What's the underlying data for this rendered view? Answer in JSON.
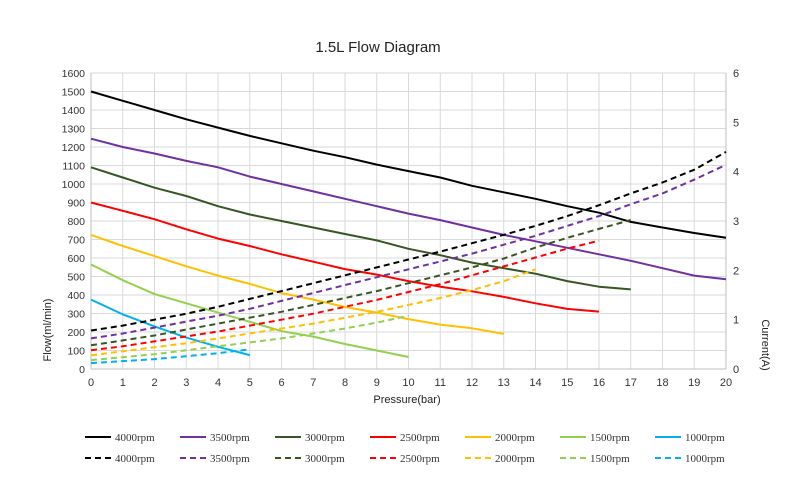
{
  "chart_data": {
    "type": "line",
    "title": "1.5L Flow Diagram",
    "xlabel": "Pressure(bar)",
    "ylabel_left": "Flow(ml/min)",
    "ylabel_right": "Current(A)",
    "xlim": [
      0,
      20
    ],
    "ylim_left": [
      0,
      1600
    ],
    "ylim_right": [
      0,
      6
    ],
    "x_ticks": [
      0,
      1,
      2,
      3,
      4,
      5,
      6,
      7,
      8,
      9,
      10,
      11,
      12,
      13,
      14,
      15,
      16,
      17,
      18,
      19,
      20
    ],
    "y_left_ticks": [
      0,
      100,
      200,
      300,
      400,
      500,
      600,
      700,
      800,
      900,
      1000,
      1100,
      1200,
      1300,
      1400,
      1500,
      1600
    ],
    "y_left_tick_labels": [
      "0",
      "100",
      "200",
      "300",
      "400",
      "500",
      "600",
      "700",
      "800",
      "900",
      "1000",
      "1100",
      "1200",
      "1300",
      "1400",
      "1500",
      "1600"
    ],
    "y_right_ticks": [
      0,
      1,
      2,
      3,
      4,
      5,
      6
    ],
    "grid": true,
    "legend_position": "bottom",
    "flow_series": [
      {
        "name": "4000rpm",
        "color": "#000000",
        "x": [
          0,
          1,
          2,
          3,
          4,
          5,
          6,
          7,
          8,
          9,
          10,
          11,
          12,
          13,
          14,
          15,
          16,
          17,
          18,
          19,
          20
        ],
        "y": [
          1500,
          1450,
          1400,
          1350,
          1305,
          1260,
          1220,
          1180,
          1145,
          1105,
          1070,
          1035,
          990,
          955,
          920,
          880,
          845,
          795,
          765,
          735,
          710
        ]
      },
      {
        "name": "3500rpm",
        "color": "#7030a0",
        "x": [
          0,
          1,
          2,
          3,
          4,
          5,
          6,
          7,
          8,
          9,
          10,
          11,
          12,
          13,
          14,
          15,
          16,
          17,
          18,
          19,
          20
        ],
        "y": [
          1245,
          1200,
          1165,
          1125,
          1090,
          1040,
          1000,
          960,
          920,
          880,
          840,
          805,
          765,
          725,
          690,
          655,
          620,
          585,
          545,
          505,
          485
        ]
      },
      {
        "name": "3000rpm",
        "color": "#375623",
        "x": [
          0,
          1,
          2,
          3,
          4,
          5,
          6,
          7,
          8,
          9,
          10,
          11,
          12,
          13,
          14,
          15,
          16,
          17
        ],
        "y": [
          1090,
          1035,
          980,
          935,
          880,
          835,
          800,
          765,
          730,
          695,
          650,
          615,
          575,
          545,
          515,
          475,
          445,
          430
        ]
      },
      {
        "name": "2500rpm",
        "color": "#ff0000",
        "x": [
          0,
          1,
          2,
          3,
          4,
          5,
          6,
          7,
          8,
          9,
          10,
          11,
          12,
          13,
          14,
          15,
          16
        ],
        "y": [
          900,
          855,
          810,
          755,
          705,
          665,
          620,
          580,
          540,
          510,
          475,
          445,
          420,
          390,
          355,
          325,
          310
        ]
      },
      {
        "name": "2000rpm",
        "color": "#ffc000",
        "x": [
          0,
          1,
          2,
          3,
          4,
          5,
          6,
          7,
          8,
          9,
          10,
          11,
          12,
          13
        ],
        "y": [
          725,
          665,
          610,
          555,
          505,
          460,
          410,
          375,
          335,
          305,
          270,
          240,
          220,
          190
        ]
      },
      {
        "name": "1500rpm",
        "color": "#92d050",
        "x": [
          0,
          1,
          2,
          3,
          4,
          5,
          6,
          7,
          8,
          9,
          10
        ],
        "y": [
          565,
          480,
          405,
          355,
          305,
          255,
          205,
          175,
          135,
          100,
          65
        ]
      },
      {
        "name": "1000rpm",
        "color": "#00b0f0",
        "x": [
          0,
          1,
          2,
          3,
          4,
          5
        ],
        "y": [
          375,
          295,
          230,
          170,
          120,
          75
        ]
      }
    ],
    "current_series": [
      {
        "name": "4000rpm",
        "color": "#000000",
        "x": [
          0,
          1,
          2,
          3,
          4,
          5,
          6,
          7,
          8,
          9,
          10,
          11,
          12,
          13,
          14,
          15,
          16,
          17,
          18,
          19,
          20
        ],
        "y": [
          0.78,
          0.88,
          1.0,
          1.12,
          1.26,
          1.42,
          1.58,
          1.74,
          1.9,
          2.06,
          2.22,
          2.38,
          2.55,
          2.72,
          2.9,
          3.1,
          3.32,
          3.56,
          3.78,
          4.04,
          4.4
        ]
      },
      {
        "name": "3500rpm",
        "color": "#7030a0",
        "x": [
          0,
          1,
          2,
          3,
          4,
          5,
          6,
          7,
          8,
          9,
          10,
          11,
          12,
          13,
          14,
          15,
          16,
          17,
          18,
          19,
          20
        ],
        "y": [
          0.62,
          0.72,
          0.84,
          0.96,
          1.08,
          1.22,
          1.38,
          1.54,
          1.7,
          1.86,
          2.02,
          2.18,
          2.34,
          2.52,
          2.7,
          2.9,
          3.1,
          3.34,
          3.56,
          3.84,
          4.14
        ]
      },
      {
        "name": "3000rpm",
        "color": "#375623",
        "x": [
          0,
          1,
          2,
          3,
          4,
          5,
          6,
          7,
          8,
          9,
          10,
          11,
          12,
          13,
          14,
          15,
          16,
          17
        ],
        "y": [
          0.48,
          0.58,
          0.68,
          0.8,
          0.92,
          1.04,
          1.16,
          1.3,
          1.44,
          1.58,
          1.74,
          1.9,
          2.06,
          2.24,
          2.46,
          2.66,
          2.84,
          3.02
        ]
      },
      {
        "name": "2500rpm",
        "color": "#ff0000",
        "x": [
          0,
          1,
          2,
          3,
          4,
          5,
          6,
          7,
          8,
          9,
          10,
          11,
          12,
          13,
          14,
          15,
          16
        ],
        "y": [
          0.38,
          0.46,
          0.56,
          0.66,
          0.76,
          0.88,
          1.0,
          1.12,
          1.26,
          1.4,
          1.56,
          1.72,
          1.9,
          2.08,
          2.26,
          2.44,
          2.6
        ]
      },
      {
        "name": "2000rpm",
        "color": "#ffc000",
        "x": [
          0,
          1,
          2,
          3,
          4,
          5,
          6,
          7,
          8,
          9,
          10,
          11,
          12,
          13,
          14
        ],
        "y": [
          0.28,
          0.36,
          0.44,
          0.52,
          0.62,
          0.72,
          0.82,
          0.92,
          1.04,
          1.16,
          1.3,
          1.44,
          1.6,
          1.78,
          2.02
        ]
      },
      {
        "name": "1500rpm",
        "color": "#92d050",
        "x": [
          0,
          1,
          2,
          3,
          4,
          5,
          6,
          7,
          8,
          9,
          10
        ],
        "y": [
          0.18,
          0.24,
          0.3,
          0.38,
          0.46,
          0.54,
          0.62,
          0.72,
          0.82,
          0.94,
          1.08
        ]
      },
      {
        "name": "1000rpm",
        "color": "#00b0f0",
        "x": [
          0,
          1,
          2,
          3,
          4,
          5
        ],
        "y": [
          0.12,
          0.16,
          0.2,
          0.26,
          0.32,
          0.4
        ]
      }
    ]
  }
}
